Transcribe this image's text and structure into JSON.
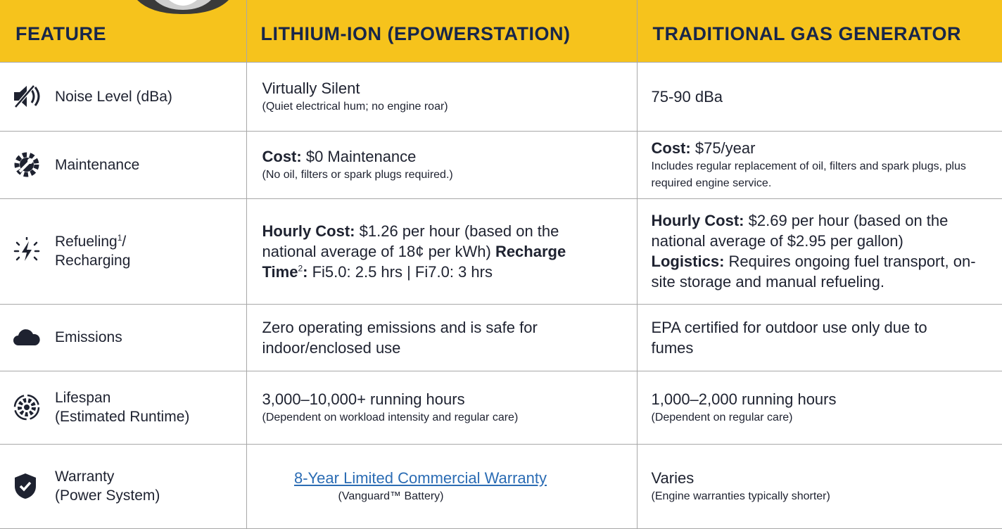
{
  "header": {
    "columns": [
      "FEATURE",
      "LITHIUM-ION (EPOWERSTATION)",
      "TRADITIONAL GAS GENERATOR"
    ]
  },
  "rows": [
    {
      "feature": {
        "text": "Noise Level (dBa)"
      },
      "lithium": {
        "text": "Virtually Silent",
        "note": "(Quiet electrical hum; no engine roar)"
      },
      "gas": {
        "text": "75-90 dBa"
      }
    },
    {
      "feature": {
        "text": "Maintenance"
      },
      "lithium": {
        "label": "Cost:",
        "text": "$0 Maintenance",
        "note": "(No oil, filters or spark plugs required.)"
      },
      "gas": {
        "label": "Cost:",
        "text": "$75/year",
        "note": "Includes regular replacement of oil, filters and spark plugs, plus required engine service."
      }
    },
    {
      "feature": {
        "text": "Refueling",
        "sup": "1",
        "slash": "/",
        "text2": "Recharging"
      },
      "lithium": {
        "label": "Hourly Cost:",
        "text": "$1.26 per hour (based on the national average of 18¢ per kWh)",
        "label2": "Recharge Time",
        "sup": "2",
        "colon": ":",
        "text2": "Fi5.0: 2.5 hrs | Fi7.0: 3 hrs"
      },
      "gas": {
        "label": "Hourly Cost:",
        "text": "$2.69 per hour (based on the national average of $2.95 per gallon)",
        "label2": "Logistics:",
        "text2": "Requires ongoing fuel transport, on-site storage and manual refueling."
      }
    },
    {
      "feature": {
        "text": "Emissions"
      },
      "lithium": {
        "text": "Zero operating emissions and is safe for indoor/enclosed use"
      },
      "gas": {
        "text": "EPA certified for outdoor use only due to fumes"
      }
    },
    {
      "feature": {
        "text": "Lifespan",
        "text2": "(Estimated Runtime)"
      },
      "lithium": {
        "text": "3,000–10,000+ running hours",
        "note": "(Dependent on workload intensity and regular care)"
      },
      "gas": {
        "text": "1,000–2,000 running hours",
        "note": "(Dependent on regular care)"
      }
    },
    {
      "feature": {
        "text": "Warranty",
        "text2": "(Power System)"
      },
      "lithium": {
        "link": "8-Year Limited Commercial Warranty",
        "note": "(Vanguard™ Battery)"
      },
      "gas": {
        "text": "Varies",
        "note": "(Engine warranties typically shorter)"
      }
    }
  ]
}
